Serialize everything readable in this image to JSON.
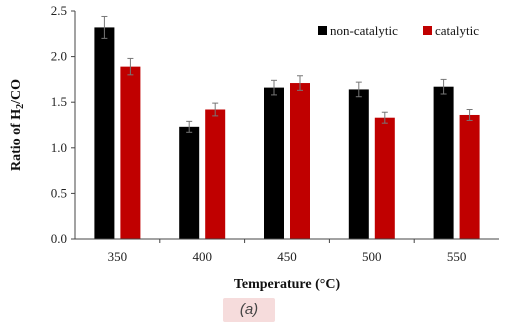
{
  "caption": "(a)",
  "chart_data": {
    "type": "bar",
    "categories": [
      "350",
      "400",
      "450",
      "500",
      "550"
    ],
    "series": [
      {
        "name": "non-catalytic",
        "color": "#000000",
        "values": [
          2.32,
          1.23,
          1.66,
          1.64,
          1.67
        ],
        "errors": [
          0.12,
          0.06,
          0.08,
          0.08,
          0.08
        ]
      },
      {
        "name": "catalytic",
        "color": "#c00000",
        "values": [
          1.89,
          1.42,
          1.71,
          1.33,
          1.36
        ],
        "errors": [
          0.09,
          0.07,
          0.08,
          0.06,
          0.06
        ]
      }
    ],
    "xlabel": "Temperature (°C)",
    "ylabel_prefix": "Ratio of H",
    "ylabel_sub": "2",
    "ylabel_suffix": "/CO",
    "ylim": [
      0,
      2.5
    ],
    "yticks": [
      "0.0",
      "0.5",
      "1.0",
      "1.5",
      "2.0",
      "2.5"
    ],
    "grid": false,
    "legend_position": "top-right"
  }
}
